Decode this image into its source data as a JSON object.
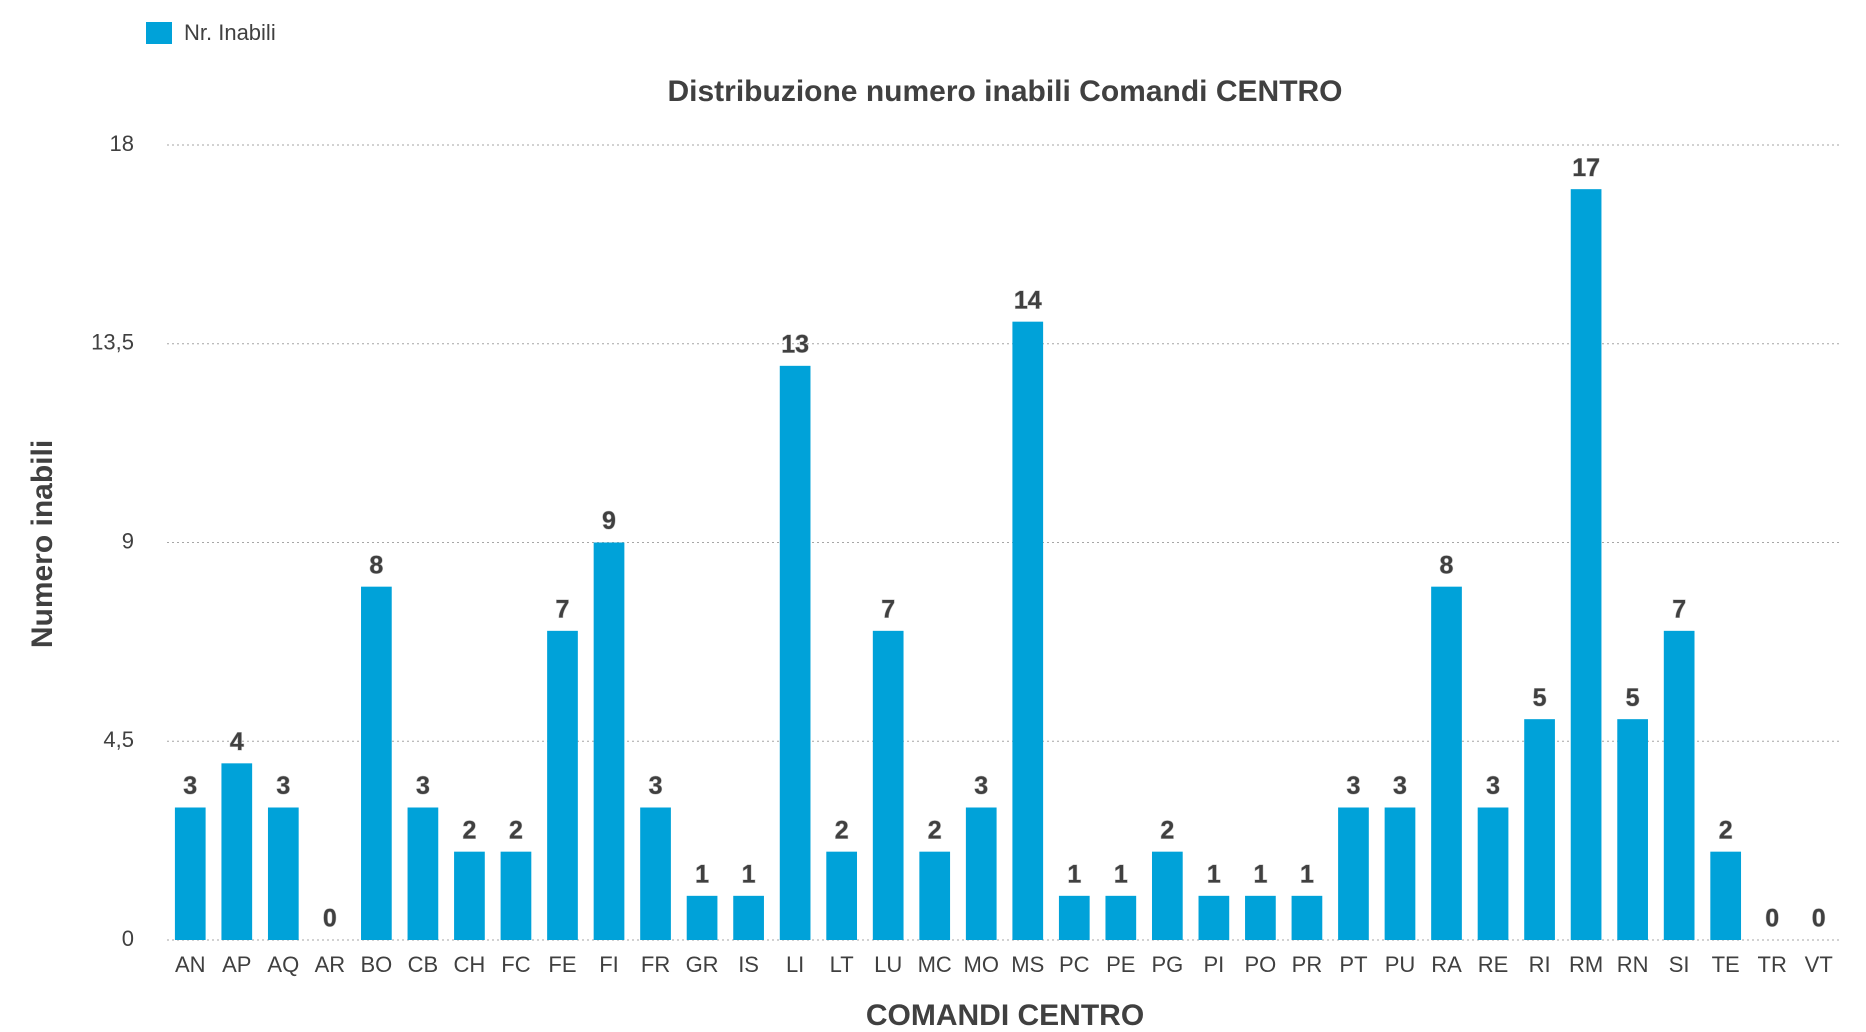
{
  "chart_data": {
    "type": "bar",
    "title": "Distribuzione numero inabili Comandi CENTRO",
    "xlabel": "COMANDI CENTRO",
    "ylabel": "Numero inabili",
    "legend": "top-left",
    "categories": [
      "AN",
      "AP",
      "AQ",
      "AR",
      "BO",
      "CB",
      "CH",
      "FC",
      "FE",
      "FI",
      "FR",
      "GR",
      "IS",
      "LI",
      "LT",
      "LU",
      "MC",
      "MO",
      "MS",
      "PC",
      "PE",
      "PG",
      "PI",
      "PO",
      "PR",
      "PT",
      "PU",
      "RA",
      "RE",
      "RI",
      "RM",
      "RN",
      "SI",
      "TE",
      "TR",
      "VT"
    ],
    "series": [
      {
        "name": "Nr. Inabili",
        "color": "#00a2d9",
        "values": [
          3,
          4,
          3,
          0,
          8,
          3,
          2,
          2,
          7,
          9,
          3,
          1,
          1,
          13,
          2,
          7,
          2,
          3,
          14,
          1,
          1,
          2,
          1,
          1,
          1,
          3,
          3,
          8,
          3,
          5,
          17,
          5,
          7,
          2,
          0,
          0
        ]
      }
    ],
    "ylim": [
      0,
      18
    ],
    "yticks": [
      0,
      {
        "value": 4.5,
        "label": "4,5"
      },
      9,
      {
        "value": 13.5,
        "label": "13,5"
      },
      18
    ],
    "grid": true
  }
}
